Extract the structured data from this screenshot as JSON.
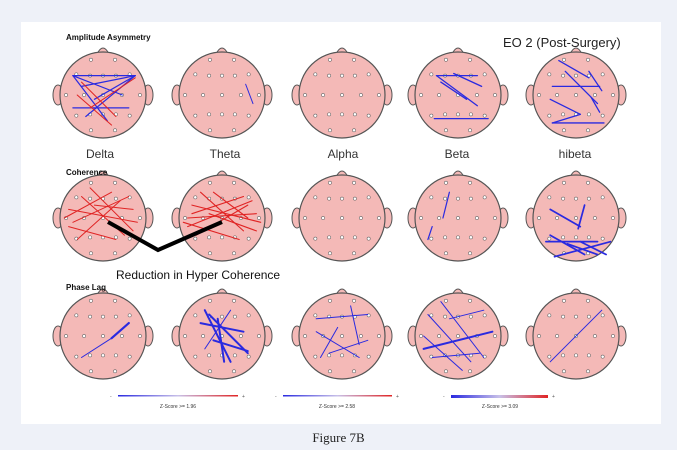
{
  "condition_label": "EO 2 (Post-Surgery)",
  "sections": [
    {
      "title": "Amplitude Asymmetry"
    },
    {
      "title": "Coherence"
    },
    {
      "title": "Phase Lag"
    }
  ],
  "bands": [
    "Delta",
    "Theta",
    "Alpha",
    "Beta",
    "hibeta"
  ],
  "annotation": "Reduction in Hyper Coherence",
  "legends": [
    {
      "label": "Z-Score >= 1.96"
    },
    {
      "label": "Z-Score >= 2.58"
    },
    {
      "label": "Z-Score >= 3.09"
    }
  ],
  "figure_caption": "Figure 7B",
  "colors": {
    "head_fill": "#f4b9b7",
    "positive": "#e02424",
    "negative": "#2a2ae0",
    "arrow": "#000000"
  }
}
